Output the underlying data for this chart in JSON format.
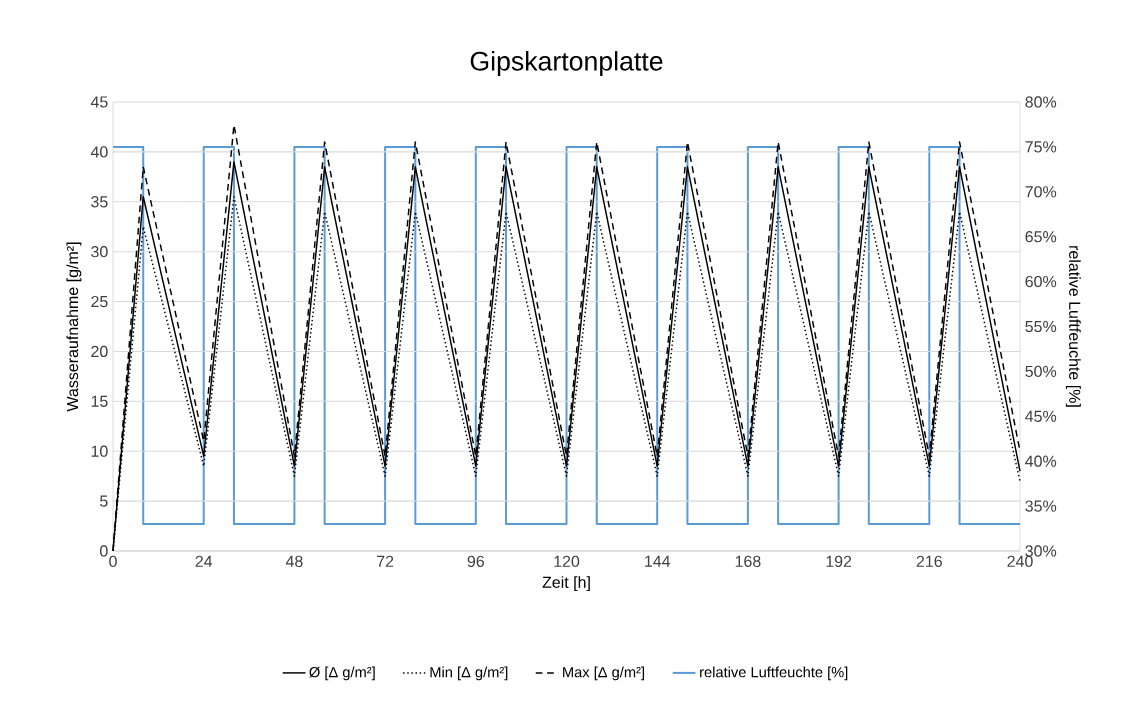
{
  "chart_data": {
    "type": "line",
    "title": "Gipskartonplatte",
    "xlabel": "Zeit [h]",
    "ylabel": "Wasseraufnahme [g/m²]",
    "y2label": "relative Luftfeuchte [%]",
    "x": [
      0,
      8,
      24,
      32,
      48,
      56,
      72,
      80,
      96,
      104,
      120,
      128,
      144,
      152,
      168,
      176,
      192,
      200,
      216,
      224,
      240
    ],
    "series": [
      {
        "name": "Ø [Δ g/m²]",
        "color": "#000000",
        "line_style": "solid",
        "values": [
          0,
          35.5,
          9.5,
          39,
          8.5,
          38.5,
          8.5,
          38.5,
          8.5,
          38.5,
          8.5,
          38.5,
          8.5,
          38.5,
          8.5,
          38.5,
          8.5,
          38.5,
          8.5,
          38.5,
          8
        ]
      },
      {
        "name": "Min [Δ g/m²]",
        "color": "#000000",
        "line_style": "dotted",
        "values": [
          0,
          32.5,
          8.5,
          35.5,
          7.5,
          34,
          7.5,
          34,
          7.5,
          34,
          7.5,
          34,
          7.5,
          34,
          7.5,
          34,
          7.5,
          34,
          7.5,
          34,
          7
        ]
      },
      {
        "name": "Max [Δ g/m²]",
        "color": "#000000",
        "line_style": "dashed",
        "values": [
          0,
          38.5,
          11,
          42.7,
          9.5,
          41,
          9.5,
          41,
          9.5,
          41,
          9.5,
          41,
          9.5,
          41,
          9.5,
          41,
          9.5,
          41,
          9.5,
          41,
          10
        ]
      },
      {
        "name": "relative Luftfeuchte [%]",
        "color": "#5b9bd5",
        "type": "step",
        "axis": "y2",
        "line_style": "solid",
        "x": [
          0,
          8,
          24,
          32,
          48,
          56,
          72,
          80,
          96,
          104,
          120,
          128,
          144,
          152,
          168,
          176,
          192,
          200,
          216,
          224,
          240
        ],
        "values": [
          75,
          33,
          75,
          33,
          75,
          33,
          75,
          33,
          75,
          33,
          75,
          33,
          75,
          33,
          75,
          33,
          75,
          33,
          75,
          33,
          33
        ]
      }
    ],
    "xlim": [
      0,
      240
    ],
    "xticks": [
      0,
      24,
      48,
      72,
      96,
      120,
      144,
      168,
      192,
      216,
      240
    ],
    "ylim": [
      0,
      45
    ],
    "yticks": [
      0,
      5,
      10,
      15,
      20,
      25,
      30,
      35,
      40,
      45
    ],
    "y2lim": [
      30,
      80
    ],
    "y2ticks": [
      {
        "value": 30,
        "label": "30%"
      },
      {
        "value": 35,
        "label": "35%"
      },
      {
        "value": 40,
        "label": "40%"
      },
      {
        "value": 45,
        "label": "45%"
      },
      {
        "value": 50,
        "label": "50%"
      },
      {
        "value": 55,
        "label": "55%"
      },
      {
        "value": 60,
        "label": "60%"
      },
      {
        "value": 65,
        "label": "65%"
      },
      {
        "value": 70,
        "label": "70%"
      },
      {
        "value": 75,
        "label": "75%"
      },
      {
        "value": 80,
        "label": "80%"
      }
    ],
    "grid": "y",
    "legend": "bottom"
  }
}
